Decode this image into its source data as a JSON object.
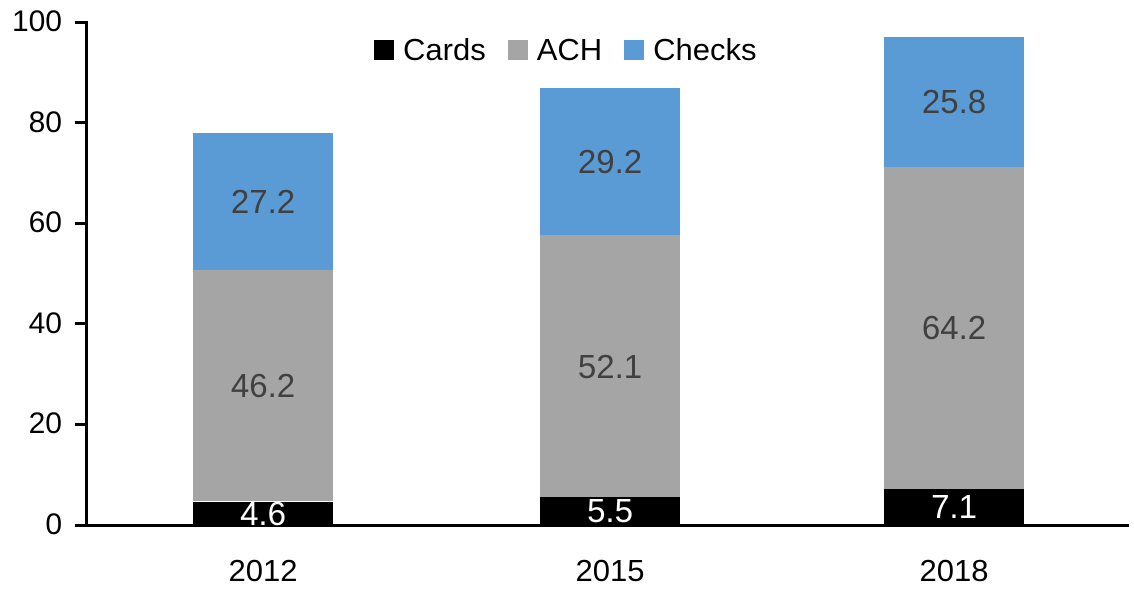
{
  "chart_data": {
    "type": "bar",
    "subtype": "stacked-column",
    "title": "",
    "xlabel": "",
    "ylabel": "",
    "categories": [
      "2012",
      "2015",
      "2018"
    ],
    "series": [
      {
        "name": "Cards",
        "color": "#000000",
        "label_color": "#ffffff",
        "values": [
          4.6,
          5.5,
          7.1
        ]
      },
      {
        "name": "ACH",
        "color": "#A5A5A5",
        "label_color": "#404040",
        "values": [
          46.2,
          52.1,
          64.2
        ]
      },
      {
        "name": "Checks",
        "color": "#5B9BD5",
        "label_color": "#404040",
        "values": [
          27.2,
          29.2,
          25.8
        ]
      }
    ],
    "stack_totals": [
      78.0,
      86.8,
      97.1
    ],
    "ylim": [
      0,
      100
    ],
    "y_ticks": [
      0,
      20,
      40,
      60,
      80,
      100
    ],
    "grid": false,
    "legend_position": "top",
    "axis_color": "#000000",
    "text_color": "#000000"
  }
}
